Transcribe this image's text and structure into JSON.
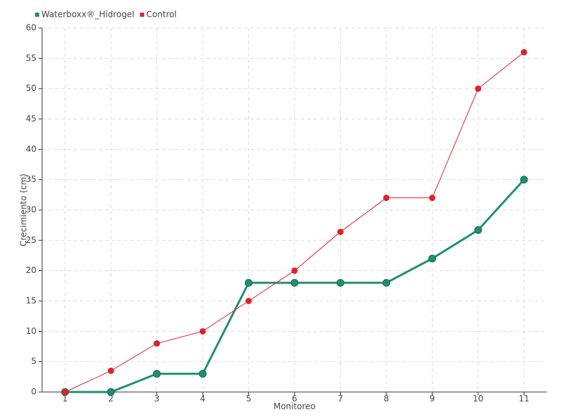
{
  "chart_data": {
    "type": "line",
    "x_label": "Monitoreo",
    "y_label": "Crecimiento (cm)",
    "categories": [
      "1",
      "2",
      "3",
      "4",
      "5",
      "6",
      "7",
      "8",
      "9",
      "10",
      "11"
    ],
    "series": [
      {
        "name": "Waterboxx®_Hidrogel",
        "color": "#1f8f72",
        "values": [
          0,
          0,
          3,
          3,
          18,
          18,
          18,
          18,
          22,
          26.7,
          35
        ]
      },
      {
        "name": "Control",
        "color": "#e0202c",
        "values": [
          0,
          3.5,
          8,
          10,
          15,
          20,
          26.4,
          32,
          32,
          50,
          56
        ]
      }
    ],
    "ylim": [
      0,
      60
    ],
    "yticks": [
      0,
      5,
      10,
      15,
      20,
      25,
      30,
      35,
      40,
      45,
      50,
      55,
      60
    ],
    "grid": true,
    "legend": "top-left"
  }
}
